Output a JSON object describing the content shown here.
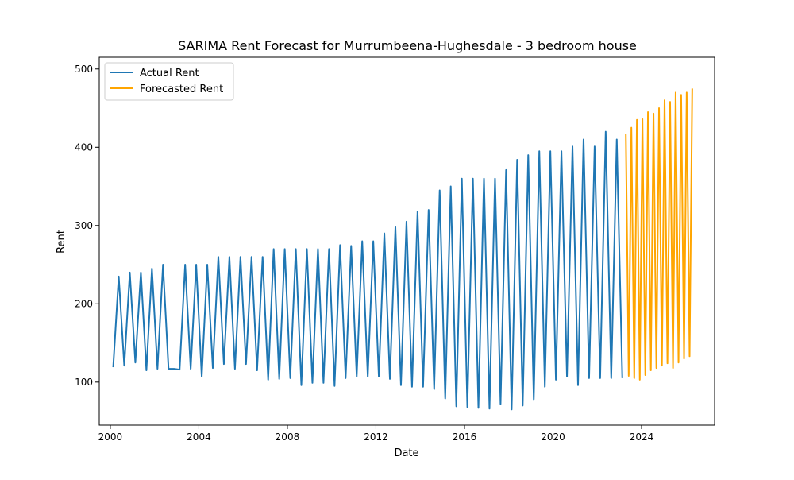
{
  "chart_data": {
    "type": "line",
    "title": "SARIMA Rent Forecast for Murrumbeena-Hughesdale - 3 bedroom house",
    "xlabel": "Date",
    "ylabel": "Rent",
    "xlim": [
      1999.5,
      2027.3
    ],
    "ylim": [
      45,
      515
    ],
    "x_ticks": [
      2000,
      2004,
      2008,
      2012,
      2016,
      2020,
      2024
    ],
    "x_tick_labels": [
      "2000",
      "2004",
      "2008",
      "2012",
      "2016",
      "2020",
      "2024"
    ],
    "y_ticks": [
      100,
      200,
      300,
      400,
      500
    ],
    "y_tick_labels": [
      "100",
      "200",
      "300",
      "400",
      "500"
    ],
    "grid": false,
    "legend_position": "upper-left",
    "series": [
      {
        "name": "Actual Rent",
        "color": "#1f77b4",
        "x": [
          2000.13,
          2000.63,
          2001.13,
          2001.63,
          2002.13,
          2002.63,
          2003.13,
          2003.63,
          2004.13,
          2004.63,
          2005.13,
          2005.63,
          2006.13,
          2006.63,
          2007.13,
          2007.63,
          2008.13,
          2008.63,
          2009.13,
          2009.63,
          2010.13,
          2010.63,
          2011.13,
          2011.63,
          2012.13,
          2012.63,
          2013.13,
          2013.63,
          2014.13,
          2014.63,
          2015.13,
          2015.63,
          2016.13,
          2016.63,
          2017.13,
          2017.63,
          2018.13,
          2018.63,
          2019.13,
          2019.63,
          2020.13,
          2020.63,
          2021.13,
          2021.63,
          2022.13,
          2022.63,
          2023.13,
          2000.38,
          2000.88,
          2001.38,
          2001.88,
          2002.38,
          2002.88,
          2003.38,
          2003.88,
          2004.38,
          2004.88,
          2005.38,
          2005.88,
          2006.38,
          2006.88,
          2007.38,
          2007.88,
          2008.38,
          2008.88,
          2009.38,
          2009.88,
          2010.38,
          2010.88,
          2011.38,
          2011.88,
          2012.38,
          2012.88,
          2013.38,
          2013.88,
          2014.38,
          2014.88,
          2015.38,
          2015.88,
          2016.38,
          2016.88,
          2017.38,
          2017.88,
          2018.38,
          2018.88,
          2019.38,
          2019.88,
          2020.38,
          2020.88,
          2021.38,
          2021.88,
          2022.38,
          2022.88
        ],
        "y": [
          119,
          121,
          125,
          115,
          117,
          117,
          116,
          117,
          107,
          118,
          123,
          117,
          123,
          115,
          103,
          104,
          105,
          96,
          99,
          99,
          95,
          105,
          107,
          107,
          107,
          104,
          96,
          94,
          94,
          91,
          79,
          69,
          68,
          67,
          66,
          72,
          65,
          70,
          78,
          94,
          103,
          107,
          96,
          105,
          105,
          105,
          105,
          235,
          240,
          240,
          245,
          250,
          117,
          250,
          250,
          250,
          260,
          260,
          260,
          260,
          260,
          270,
          270,
          270,
          270,
          270,
          270,
          275,
          274,
          280,
          280,
          290,
          298,
          305,
          318,
          320,
          345,
          350,
          360,
          360,
          360,
          360,
          371,
          384,
          390,
          395,
          395,
          395,
          401,
          410,
          401,
          420,
          410
        ]
      },
      {
        "name": "Forecasted Rent",
        "color": "#ffa500",
        "x": [
          2023.29,
          2023.42,
          2023.54,
          2023.67,
          2023.79,
          2023.92,
          2024.04,
          2024.17,
          2024.29,
          2024.42,
          2024.54,
          2024.67,
          2024.79,
          2024.92,
          2025.04,
          2025.17,
          2025.29,
          2025.42,
          2025.54,
          2025.67,
          2025.79,
          2025.92,
          2026.04,
          2026.17,
          2026.29
        ],
        "y": [
          417,
          108,
          425,
          105,
          435,
          103,
          436,
          109,
          445,
          115,
          443,
          118,
          450,
          121,
          460,
          124,
          458,
          118,
          470,
          125,
          467,
          130,
          470,
          133,
          475
        ]
      }
    ]
  }
}
